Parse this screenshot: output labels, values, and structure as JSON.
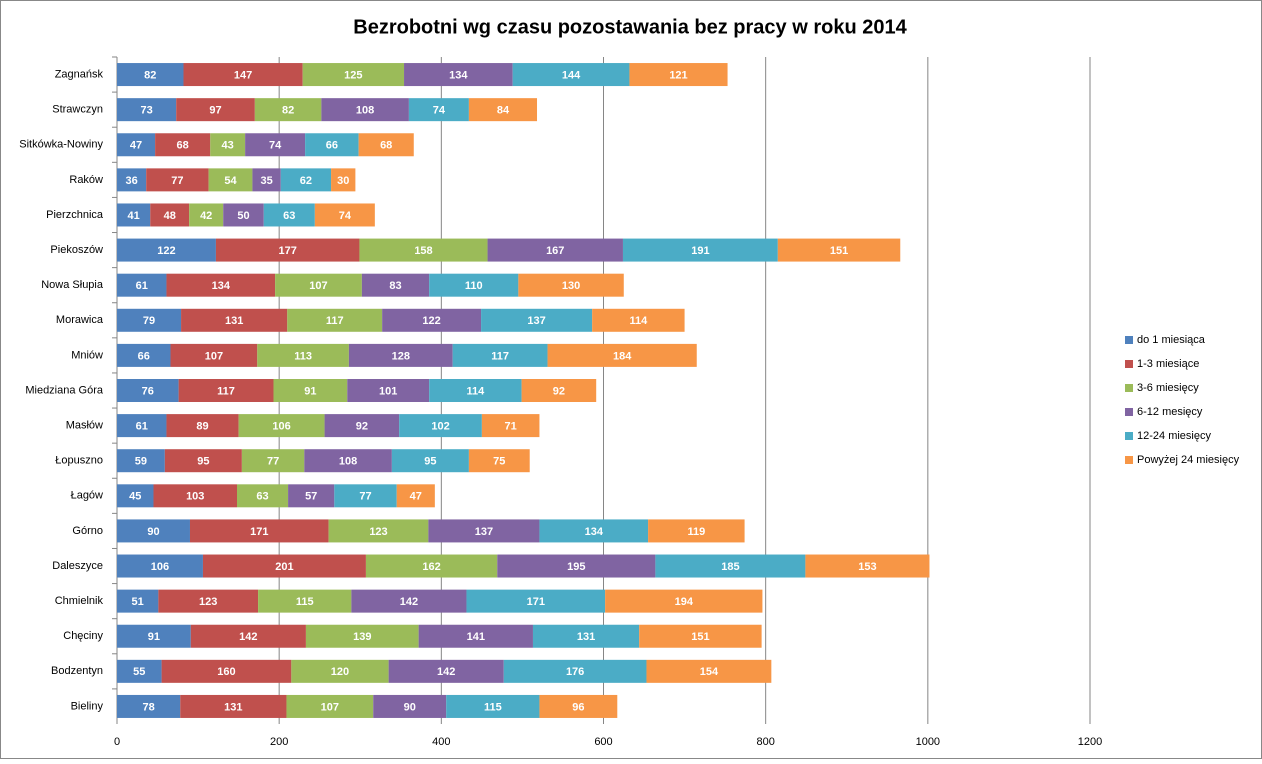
{
  "chart_data": {
    "type": "bar",
    "orientation": "horizontal",
    "stacked": true,
    "title": "Bezrobotni wg czasu pozostawania bez pracy w roku 2014",
    "categories": [
      "Zagnańsk",
      "Strawczyn",
      "Sitkówka-Nowiny",
      "Raków",
      "Pierzchnica",
      "Piekoszów",
      "Nowa Słupia",
      "Morawica",
      "Mniów",
      "Miedziana Góra",
      "Masłów",
      "Łopuszno",
      "Łagów",
      "Górno",
      "Daleszyce",
      "Chmielnik",
      "Chęciny",
      "Bodzentyn",
      "Bieliny"
    ],
    "series": [
      {
        "name": "do 1 miesiąca",
        "color": "#4f81bd",
        "values": [
          82,
          73,
          47,
          36,
          41,
          122,
          61,
          79,
          66,
          76,
          61,
          59,
          45,
          90,
          106,
          51,
          91,
          55,
          78
        ]
      },
      {
        "name": "1-3 miesiące",
        "color": "#c0504d",
        "values": [
          147,
          97,
          68,
          77,
          48,
          177,
          134,
          131,
          107,
          117,
          89,
          95,
          103,
          171,
          201,
          123,
          142,
          160,
          131
        ]
      },
      {
        "name": "3-6 miesięcy",
        "color": "#9bbb59",
        "values": [
          125,
          82,
          43,
          54,
          42,
          158,
          107,
          117,
          113,
          91,
          106,
          77,
          63,
          123,
          162,
          115,
          139,
          120,
          107
        ]
      },
      {
        "name": "6-12 mesięcy",
        "color": "#8064a2",
        "values": [
          134,
          108,
          74,
          35,
          50,
          167,
          83,
          122,
          128,
          101,
          92,
          108,
          57,
          137,
          195,
          142,
          141,
          142,
          90
        ]
      },
      {
        "name": "12-24 miesięcy",
        "color": "#4bacc6",
        "values": [
          144,
          74,
          66,
          62,
          63,
          191,
          110,
          137,
          117,
          114,
          102,
          95,
          77,
          134,
          185,
          171,
          131,
          176,
          115
        ]
      },
      {
        "name": "Powyżej 24 miesięcy",
        "color": "#f79646",
        "values": [
          121,
          84,
          68,
          30,
          74,
          151,
          130,
          114,
          184,
          92,
          71,
          75,
          47,
          119,
          153,
          194,
          151,
          154,
          96
        ]
      }
    ],
    "xlim": [
      0,
      1200
    ],
    "xticks": [
      0,
      200,
      400,
      600,
      800,
      1000,
      1200
    ],
    "grid": true,
    "legend": "right"
  }
}
